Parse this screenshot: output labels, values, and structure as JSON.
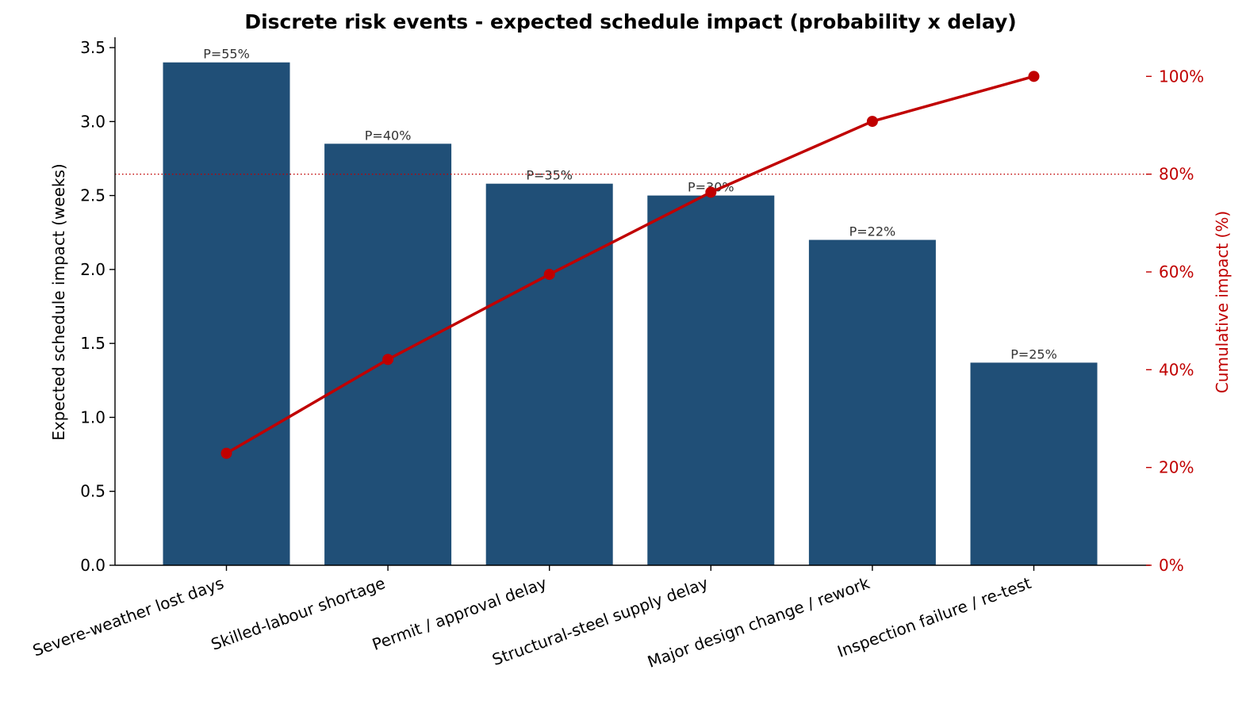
{
  "chart_data": {
    "type": "bar",
    "title": "Discrete risk events - expected schedule impact (probability x delay)",
    "categories": [
      "Severe-weather lost days",
      "Skilled-labour shortage",
      "Permit / approval delay",
      "Structural-steel supply delay",
      "Major design change / rework",
      "Inspection failure / re-test"
    ],
    "series": [
      {
        "type": "bar",
        "axis": "left",
        "values": [
          3.4,
          2.85,
          2.58,
          2.5,
          2.2,
          1.37
        ],
        "labels": [
          "P=55%",
          "P=40%",
          "P=35%",
          "P=30%",
          "P=22%",
          "P=25%"
        ],
        "color": "#204f77"
      },
      {
        "type": "line",
        "axis": "right",
        "values": [
          22.9,
          42.1,
          59.5,
          76.3,
          90.8,
          100.0
        ],
        "color": "#c00000"
      }
    ],
    "ylabel": "Expected schedule impact  (weeks)",
    "ylim": [
      0,
      3.57
    ],
    "yticks": [
      "0.0",
      "0.5",
      "1.0",
      "1.5",
      "2.0",
      "2.5",
      "3.0",
      "3.5"
    ],
    "y2label": "Cumulative impact  (%)",
    "y2lim": [
      0,
      108
    ],
    "y2ticks": [
      "0%",
      "20%",
      "40%",
      "60%",
      "80%",
      "100%"
    ],
    "reference_line": {
      "axis": "right",
      "value": 80,
      "style": "dotted",
      "color": "#c00000"
    },
    "grid": false,
    "legend": "none"
  }
}
